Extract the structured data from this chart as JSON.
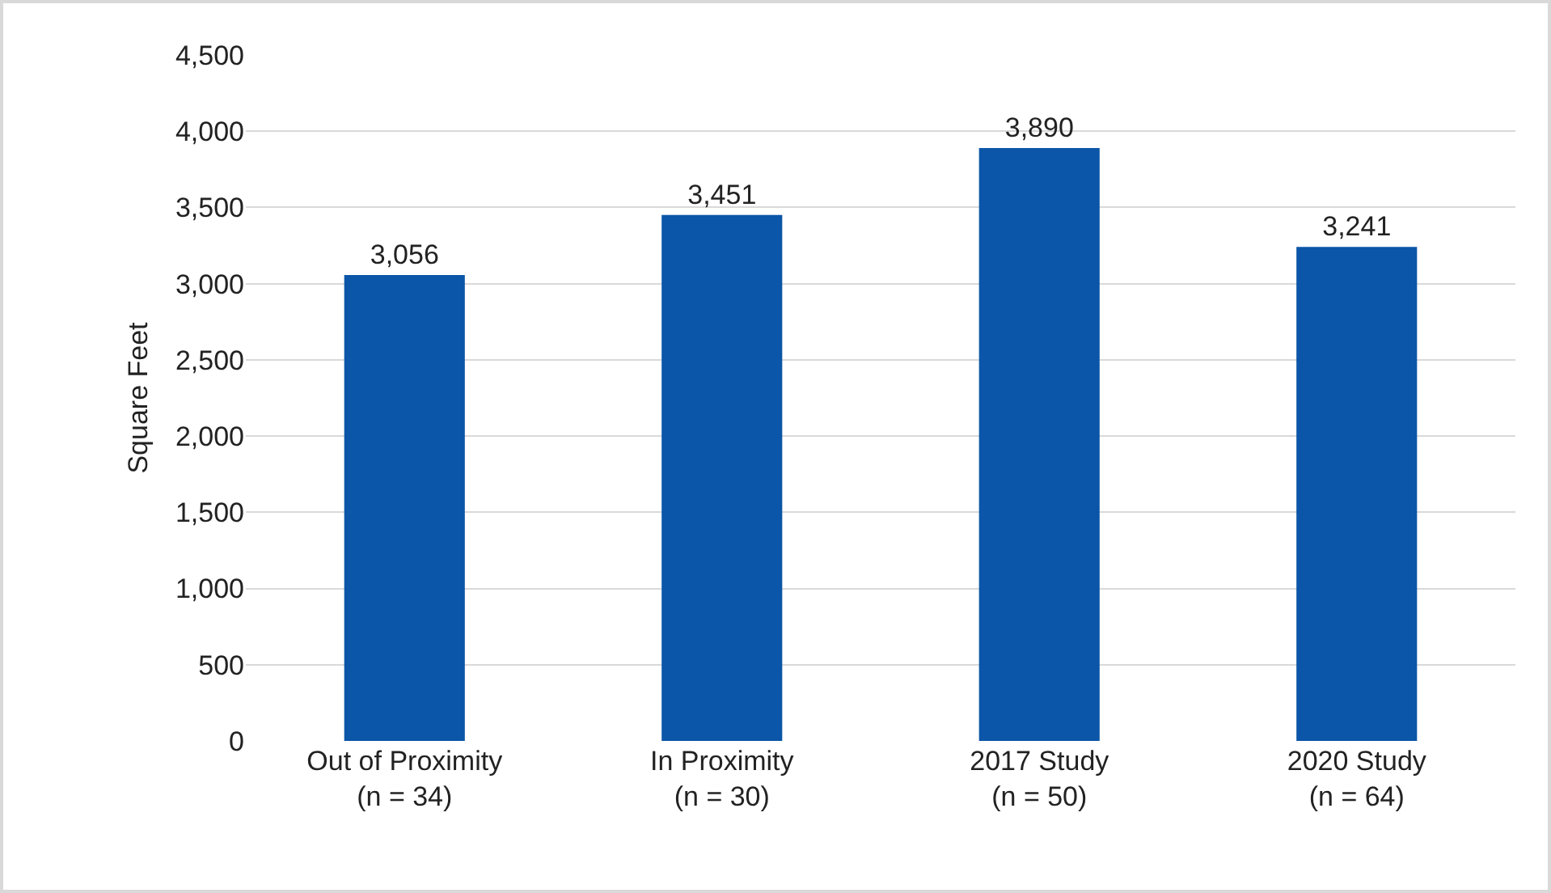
{
  "chart_data": {
    "type": "bar",
    "ylabel": "Square Feet",
    "categories": [
      "Out of Proximity\n(n = 34)",
      "In Proximity\n(n = 30)",
      "2017 Study\n(n = 50)",
      "2020 Study\n(n = 64)"
    ],
    "values": [
      3056,
      3451,
      3890,
      3241
    ],
    "color": "#0b56a8",
    "ylim": [
      0,
      4500
    ],
    "yticks": [
      {
        "value": 0,
        "label": "0"
      },
      {
        "value": 500,
        "label": "500"
      },
      {
        "value": 1000,
        "label": "1,000"
      },
      {
        "value": 1500,
        "label": "1,500"
      },
      {
        "value": 2000,
        "label": "2,000"
      },
      {
        "value": 2500,
        "label": "2,500"
      },
      {
        "value": 3000,
        "label": "3,000"
      },
      {
        "value": 3500,
        "label": "3,500"
      },
      {
        "value": 4000,
        "label": "4,000"
      },
      {
        "value": 4500,
        "label": "4,500"
      }
    ],
    "value_labels": [
      "3,056",
      "3,451",
      "3,890",
      "3,241"
    ],
    "grid": "y",
    "legend": false
  }
}
